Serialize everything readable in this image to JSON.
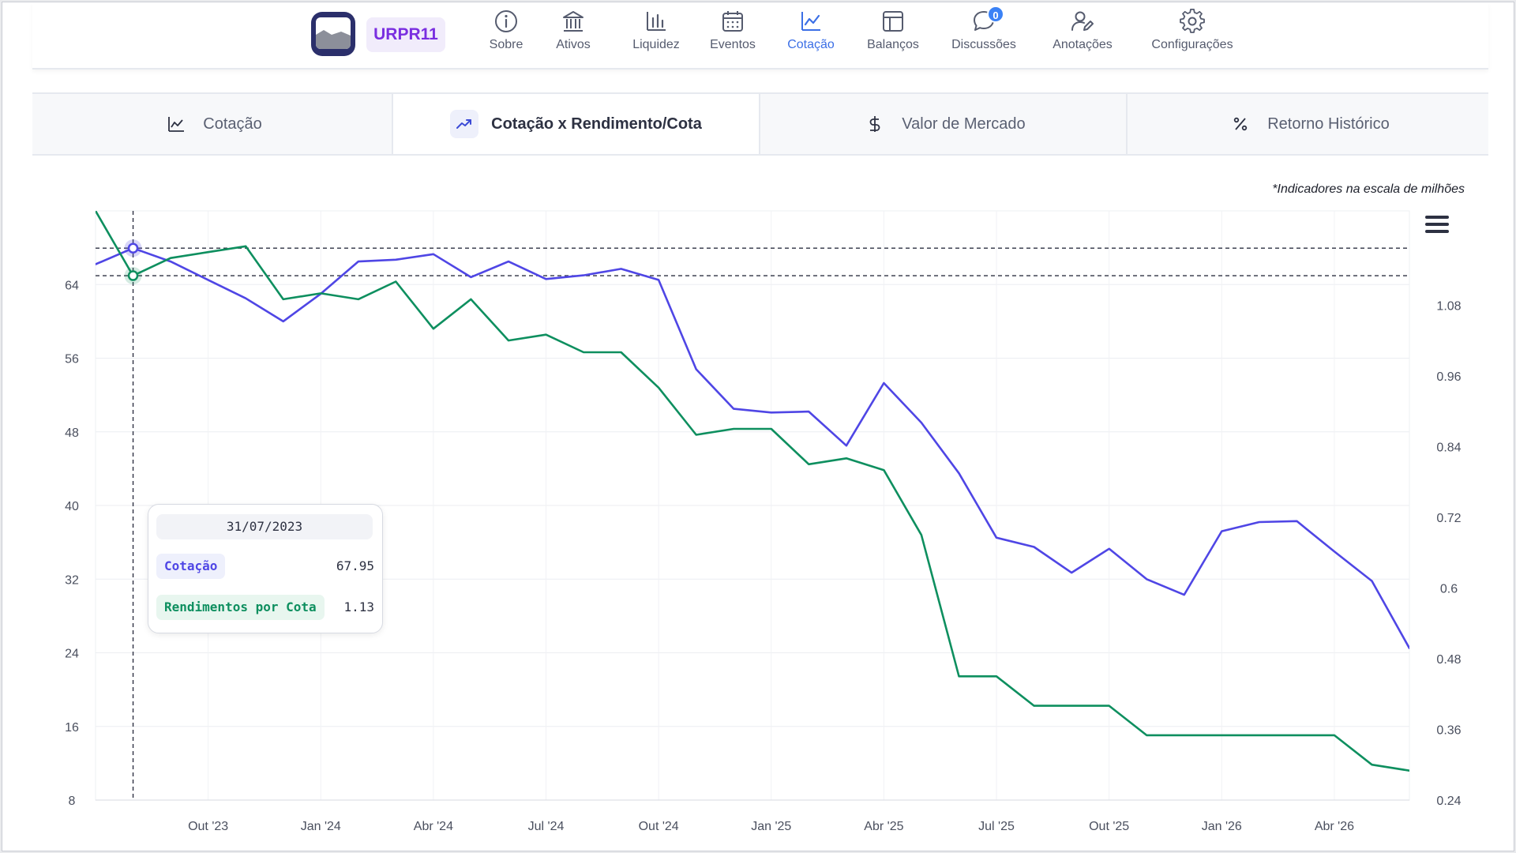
{
  "header": {
    "ticker": "URPR11",
    "nav": [
      {
        "label": "Sobre",
        "icon": "info-icon",
        "active": false
      },
      {
        "label": "Ativos",
        "icon": "bank-icon",
        "active": false
      },
      {
        "label": "Liquidez",
        "icon": "bar-chart-icon",
        "active": false
      },
      {
        "label": "Eventos",
        "icon": "calendar-icon",
        "active": false
      },
      {
        "label": "Cotação",
        "icon": "line-chart-icon",
        "active": true
      },
      {
        "label": "Balanços",
        "icon": "layout-icon",
        "active": false
      },
      {
        "label": "Discussões",
        "icon": "chat-icon",
        "active": false,
        "badge": "0"
      },
      {
        "label": "Anotações",
        "icon": "user-edit-icon",
        "active": false
      },
      {
        "label": "Configurações",
        "icon": "gear-icon",
        "active": false
      }
    ]
  },
  "subtabs": [
    {
      "label": "Cotação",
      "icon": "line-chart-icon",
      "active": false
    },
    {
      "label": "Cotação x Rendimento/Cota",
      "icon": "trending-up-icon",
      "active": true
    },
    {
      "label": "Valor de Mercado",
      "icon": "dollar-icon",
      "active": false
    },
    {
      "label": "Retorno Histórico",
      "icon": "percent-icon",
      "active": false
    }
  ],
  "chart_note": "*Indicadores na escala de milhões",
  "tooltip": {
    "date": "31/07/2023",
    "rows": [
      {
        "name": "Cotação",
        "value": "67.95"
      },
      {
        "name": "Rendimentos por Cota",
        "value": "1.13"
      }
    ]
  },
  "colors": {
    "cotacao": "#4f46e5",
    "rendimento": "#0e8f5f",
    "active_nav": "#3b6fe6",
    "ticker_text": "#7a2fe0"
  },
  "chart_data": {
    "type": "line",
    "x_tick_labels": [
      "Out '23",
      "Jan '24",
      "Abr '24",
      "Jul '24",
      "Out '24",
      "Jan '25",
      "Abr '25",
      "Jul '25",
      "Out '25",
      "Jan '26",
      "Abr '26"
    ],
    "x_tick_months": [
      "2023-10",
      "2024-01",
      "2024-04",
      "2024-07",
      "2024-10",
      "2025-01",
      "2025-04",
      "2025-07",
      "2025-10",
      "2026-01",
      "2026-04"
    ],
    "x_range": [
      "2023-07",
      "2026-06"
    ],
    "y_left": {
      "min": 8,
      "max": 72,
      "ticks": [
        8,
        16,
        24,
        32,
        40,
        48,
        56,
        64
      ]
    },
    "y_right": {
      "min": 0.24,
      "max": 1.24,
      "ticks": [
        "0.24",
        "0.36",
        "0.48",
        "0.6",
        "0.72",
        "0.84",
        "0.96",
        "1.08"
      ]
    },
    "grid": true,
    "series": [
      {
        "name": "Cotação",
        "axis": "left",
        "dates": [
          "2023-07",
          "2023-08",
          "2023-09",
          "2023-10",
          "2023-11",
          "2023-12",
          "2024-01",
          "2024-02",
          "2024-03",
          "2024-04",
          "2024-05",
          "2024-06",
          "2024-07",
          "2024-08",
          "2024-09",
          "2024-10",
          "2024-11",
          "2024-12",
          "2025-01",
          "2025-02",
          "2025-03",
          "2025-04",
          "2025-05",
          "2025-06",
          "2025-07",
          "2025-08",
          "2025-09",
          "2025-10",
          "2025-11",
          "2025-12",
          "2026-01",
          "2026-02",
          "2026-03",
          "2026-04",
          "2026-05",
          "2026-06"
        ],
        "values": [
          66.2,
          67.95,
          66.5,
          64.5,
          62.5,
          60.0,
          63.0,
          66.5,
          66.7,
          67.3,
          64.8,
          66.5,
          64.6,
          65.0,
          65.7,
          64.5,
          54.8,
          50.5,
          50.1,
          50.2,
          46.5,
          53.3,
          49.0,
          43.5,
          36.5,
          35.5,
          32.7,
          35.3,
          32.0,
          30.3,
          37.2,
          38.2,
          38.3,
          35.0,
          31.8,
          24.5
        ]
      },
      {
        "name": "Rendimentos por Cota",
        "axis": "right",
        "dates": [
          "2023-07",
          "2023-08",
          "2023-09",
          "2023-10",
          "2023-11",
          "2023-12",
          "2024-01",
          "2024-02",
          "2024-03",
          "2024-04",
          "2024-05",
          "2024-06",
          "2024-07",
          "2024-08",
          "2024-09",
          "2024-10",
          "2024-11",
          "2024-12",
          "2025-01",
          "2025-02",
          "2025-03",
          "2025-04",
          "2025-05",
          "2025-06",
          "2025-07",
          "2025-08",
          "2025-09",
          "2025-10",
          "2025-11",
          "2025-12",
          "2026-01",
          "2026-02",
          "2026-03",
          "2026-04",
          "2026-05",
          "2026-06"
        ],
        "values": [
          1.24,
          1.13,
          1.16,
          1.17,
          1.18,
          1.09,
          1.1,
          1.09,
          1.12,
          1.04,
          1.09,
          1.02,
          1.03,
          1.0,
          1.0,
          0.94,
          0.86,
          0.87,
          0.87,
          0.81,
          0.82,
          0.8,
          0.69,
          0.45,
          0.45,
          0.4,
          0.4,
          0.4,
          0.35,
          0.35,
          0.35,
          0.35,
          0.35,
          0.35,
          0.3,
          0.29
        ]
      }
    ],
    "crosshair": {
      "date": "2023-08",
      "cotacao": 67.95,
      "rendimento": 1.13
    }
  }
}
